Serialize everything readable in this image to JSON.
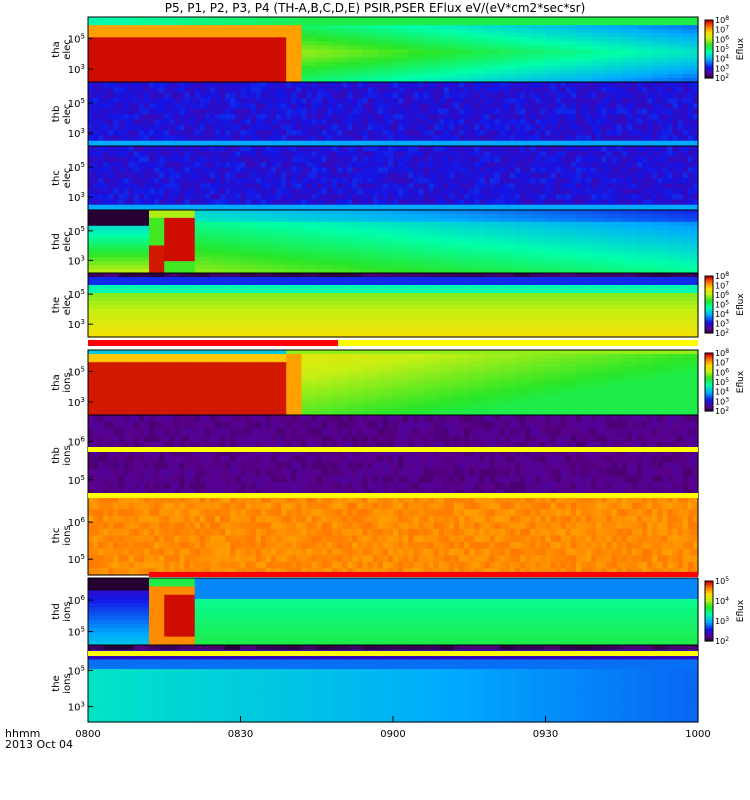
{
  "title": "P5, P1, P2, P3, P4 (TH-A,B,C,D,E) PSIR,PSER EFlux eV/(eV*cm2*sec*sr)",
  "footer": {
    "time_format": "hhmm",
    "date": "2013 Oct 04"
  },
  "chart_data": {
    "type": "heatmap",
    "title": "P5, P1, P2, P3, P4 (TH-A,B,C,D,E) PSIR,PSER EFlux eV/(eV*cm2*sec*sr)",
    "x_ticks": [
      "0800",
      "0830",
      "0900",
      "0930",
      "1000"
    ],
    "x_range": [
      "08:00",
      "10:00"
    ],
    "colorbar": {
      "label": "Eflux",
      "scale": "log",
      "tick_labels_elec": [
        "10^2",
        "10^3",
        "10^4",
        "10^5",
        "10^6",
        "10^7",
        "10^8"
      ],
      "tick_labels_ions": [
        "10^2",
        "10^3",
        "10^4",
        "10^5"
      ]
    },
    "panels": [
      {
        "probe": "tha",
        "species": "elec",
        "y_ticks": [
          "10^5",
          "10^3"
        ],
        "colorbar": true,
        "preset": "tha_elec"
      },
      {
        "probe": "thb",
        "species": "elec",
        "y_ticks": [
          "10^5",
          "10^3"
        ],
        "colorbar": false,
        "preset": "blue_noise"
      },
      {
        "probe": "thc",
        "species": "elec",
        "y_ticks": [
          "10^5",
          "10^3"
        ],
        "colorbar": false,
        "preset": "blue_noise"
      },
      {
        "probe": "thd",
        "species": "elec",
        "y_ticks": [
          "10^5",
          "10^3"
        ],
        "colorbar": false,
        "preset": "thd_elec"
      },
      {
        "probe": "the",
        "species": "elec",
        "y_ticks": [
          "10^5",
          "10^3"
        ],
        "colorbar": true,
        "preset": "the_elec"
      },
      {
        "probe": "tha",
        "species": "ions",
        "y_ticks": [
          "10^5",
          "10^3"
        ],
        "colorbar": true,
        "preset": "tha_ions"
      },
      {
        "probe": "thb",
        "species": "ions",
        "y_ticks": [
          "10^6",
          "10^5"
        ],
        "colorbar": false,
        "preset": "purple_noise"
      },
      {
        "probe": "thc",
        "species": "ions",
        "y_ticks": [
          "10^6",
          "10^5"
        ],
        "colorbar": false,
        "preset": "orange_noise"
      },
      {
        "probe": "thd",
        "species": "ions",
        "y_ticks": [
          "10^6",
          "10^5"
        ],
        "colorbar": true,
        "preset": "thd_ions"
      },
      {
        "probe": "the",
        "species": "ions",
        "y_ticks": [
          "10^5",
          "10^3"
        ],
        "colorbar": false,
        "preset": "the_ions"
      }
    ]
  }
}
